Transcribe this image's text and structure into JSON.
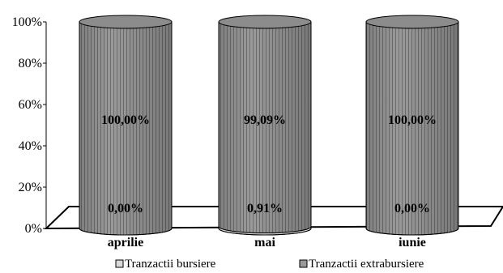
{
  "chart_data": {
    "type": "bar",
    "style": "stacked-100-cylinder",
    "categories": [
      "aprilie",
      "mai",
      "iunie"
    ],
    "series": [
      {
        "name": "Tranzactii bursiere",
        "values": [
          0.0,
          0.91,
          0.0
        ],
        "labels": [
          "0,00%",
          "0,91%",
          "0,00%"
        ],
        "color": "#d9d9d9"
      },
      {
        "name": "Tranzactii extrabursiere",
        "values": [
          100.0,
          99.09,
          100.0
        ],
        "labels": [
          "100,00%",
          "99,09%",
          "100,00%"
        ],
        "color": "#9a9a9a"
      }
    ],
    "yticks": [
      "0%",
      "20%",
      "40%",
      "60%",
      "80%",
      "100%"
    ],
    "ylim": [
      0,
      100
    ],
    "legend_position": "bottom",
    "grid": false
  }
}
